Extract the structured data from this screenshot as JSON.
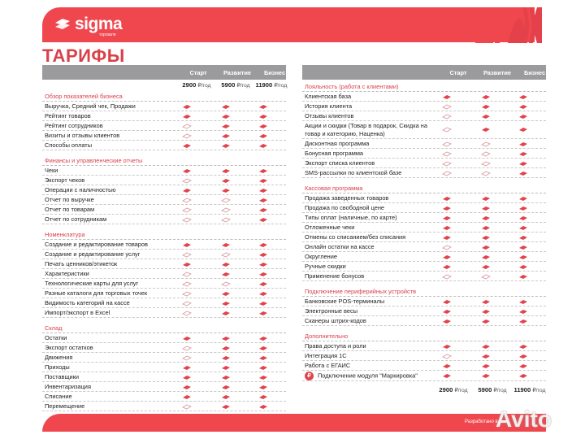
{
  "brand": {
    "name": "sigma",
    "sub": "торговля"
  },
  "title": "ТАРИФЫ",
  "plans": [
    "Старт",
    "Развитие",
    "Бизнес"
  ],
  "prices": [
    {
      "amount": "2900",
      "unit": "₽/год"
    },
    {
      "amount": "5900",
      "unit": "₽/год"
    },
    {
      "amount": "11900",
      "unit": "₽/год"
    }
  ],
  "colors": {
    "accent": "#f0474f",
    "header": "#9b9b9d",
    "section": "#d9404a"
  },
  "legend": {
    "filled": "included",
    "outline": "not included"
  },
  "left": [
    {
      "title": "Обзор показателей бизнеса",
      "rows": [
        {
          "label": "Выручка, Средний чек, Продажи",
          "v": [
            1,
            1,
            1
          ]
        },
        {
          "label": "Рейтинг товаров",
          "v": [
            1,
            1,
            1
          ]
        },
        {
          "label": "Рейтинг сотрудников",
          "v": [
            0,
            1,
            1
          ]
        },
        {
          "label": "Визиты и отзывы клиентов",
          "v": [
            0,
            1,
            1
          ]
        },
        {
          "label": "Способы оплаты",
          "v": [
            1,
            1,
            1
          ]
        }
      ]
    },
    {
      "title": "Финансы и управленческие отчеты",
      "rows": [
        {
          "label": "Чеки",
          "v": [
            1,
            1,
            1
          ]
        },
        {
          "label": "Экспорт чеков",
          "v": [
            0,
            1,
            1
          ]
        },
        {
          "label": "Операции с наличностью",
          "v": [
            1,
            1,
            1
          ]
        },
        {
          "label": "Отчет по выручке",
          "v": [
            0,
            0,
            1
          ]
        },
        {
          "label": "Отчет по товарам",
          "v": [
            0,
            0,
            1
          ]
        },
        {
          "label": "Отчет по сотрудникам",
          "v": [
            0,
            0,
            1
          ]
        }
      ]
    },
    {
      "title": "Номенклатура",
      "rows": [
        {
          "label": "Создание и редактирование товаров",
          "v": [
            1,
            1,
            1
          ]
        },
        {
          "label": "Создание и редактирование услуг",
          "v": [
            0,
            0,
            1
          ]
        },
        {
          "label": "Печать ценников/этикеток",
          "v": [
            1,
            1,
            1
          ]
        },
        {
          "label": "Характеристики",
          "v": [
            0,
            1,
            1
          ]
        },
        {
          "label": "Технологические карты для услуг",
          "v": [
            0,
            0,
            1
          ]
        },
        {
          "label": "Разные каталоги для торговых точек",
          "v": [
            0,
            1,
            1
          ]
        },
        {
          "label": "Видимость категорий на кассе",
          "v": [
            0,
            1,
            1
          ]
        },
        {
          "label": "Импорт/экспорт в Excel",
          "v": [
            0,
            1,
            1
          ]
        }
      ]
    },
    {
      "title": "Склад",
      "rows": [
        {
          "label": "Остатки",
          "v": [
            1,
            1,
            1
          ]
        },
        {
          "label": "Экспорт остатков",
          "v": [
            0,
            1,
            1
          ]
        },
        {
          "label": "Движения",
          "v": [
            0,
            1,
            1
          ]
        },
        {
          "label": "Приходы",
          "v": [
            1,
            1,
            1
          ]
        },
        {
          "label": "Поставщики",
          "v": [
            1,
            1,
            1
          ]
        },
        {
          "label": "Инвентаризация",
          "v": [
            1,
            1,
            1
          ]
        },
        {
          "label": "Списание",
          "v": [
            1,
            1,
            1
          ]
        },
        {
          "label": "Перемещение",
          "v": [
            0,
            1,
            1
          ]
        }
      ]
    }
  ],
  "right": [
    {
      "title": "Лояльность (работа с клиентами)",
      "rows": [
        {
          "label": "Клиентская база",
          "v": [
            1,
            1,
            1
          ]
        },
        {
          "label": "История клиента",
          "v": [
            0,
            1,
            1
          ]
        },
        {
          "label": "Отзывы клиентов",
          "v": [
            0,
            1,
            1
          ]
        },
        {
          "label": "Акции и скидки (Товар в подарок, Скидка на товар и категорию, Наценка)",
          "v": [
            0,
            1,
            1
          ]
        },
        {
          "label": "Дисконтная программа",
          "v": [
            0,
            0,
            1
          ]
        },
        {
          "label": "Бонусная программа",
          "v": [
            0,
            0,
            1
          ]
        },
        {
          "label": "Экспорт списка клиентов",
          "v": [
            0,
            0,
            1
          ]
        },
        {
          "label": "SMS-рассылки по клиентской базе",
          "v": [
            0,
            0,
            1
          ]
        }
      ]
    },
    {
      "title": "Кассовая программа",
      "rows": [
        {
          "label": "Продажа заведенных товаров",
          "v": [
            1,
            1,
            1
          ]
        },
        {
          "label": "Продажа по свободной цене",
          "v": [
            1,
            1,
            1
          ]
        },
        {
          "label": "Типы оплат (наличные, по карте)",
          "v": [
            1,
            1,
            1
          ]
        },
        {
          "label": "Отложенные чеки",
          "v": [
            1,
            1,
            1
          ]
        },
        {
          "label": "Отмены со списанием/без списания",
          "v": [
            1,
            1,
            1
          ]
        },
        {
          "label": "Онлайн остатки на кассе",
          "v": [
            0,
            1,
            1
          ]
        },
        {
          "label": "Округление",
          "v": [
            1,
            1,
            1
          ]
        },
        {
          "label": "Ручные скидки",
          "v": [
            1,
            1,
            1
          ]
        },
        {
          "label": "Применение бонусов",
          "v": [
            0,
            0,
            1
          ]
        }
      ]
    },
    {
      "title": "Подключение периферийных устройств",
      "rows": [
        {
          "label": "Банковские POS-терминалы",
          "v": [
            1,
            1,
            1
          ]
        },
        {
          "label": "Электронные весы",
          "v": [
            1,
            1,
            1
          ]
        },
        {
          "label": "Сканеры штрих-кодов",
          "v": [
            1,
            1,
            1
          ]
        }
      ]
    },
    {
      "title": "Дополнительно",
      "rows": [
        {
          "label": "Права доступа и роли",
          "v": [
            1,
            1,
            1
          ]
        },
        {
          "label": "Интеграция 1С",
          "v": [
            0,
            1,
            1
          ]
        },
        {
          "label": "Работа с ЕГАИС",
          "v": [
            1,
            1,
            1
          ]
        },
        {
          "label": "Подключение модуля \"Маркировка\"",
          "v": [
            1,
            1,
            1
          ],
          "badge": "₽"
        }
      ]
    }
  ],
  "footer": {
    "developed": "Разработано в",
    "watermark": "Avito"
  }
}
